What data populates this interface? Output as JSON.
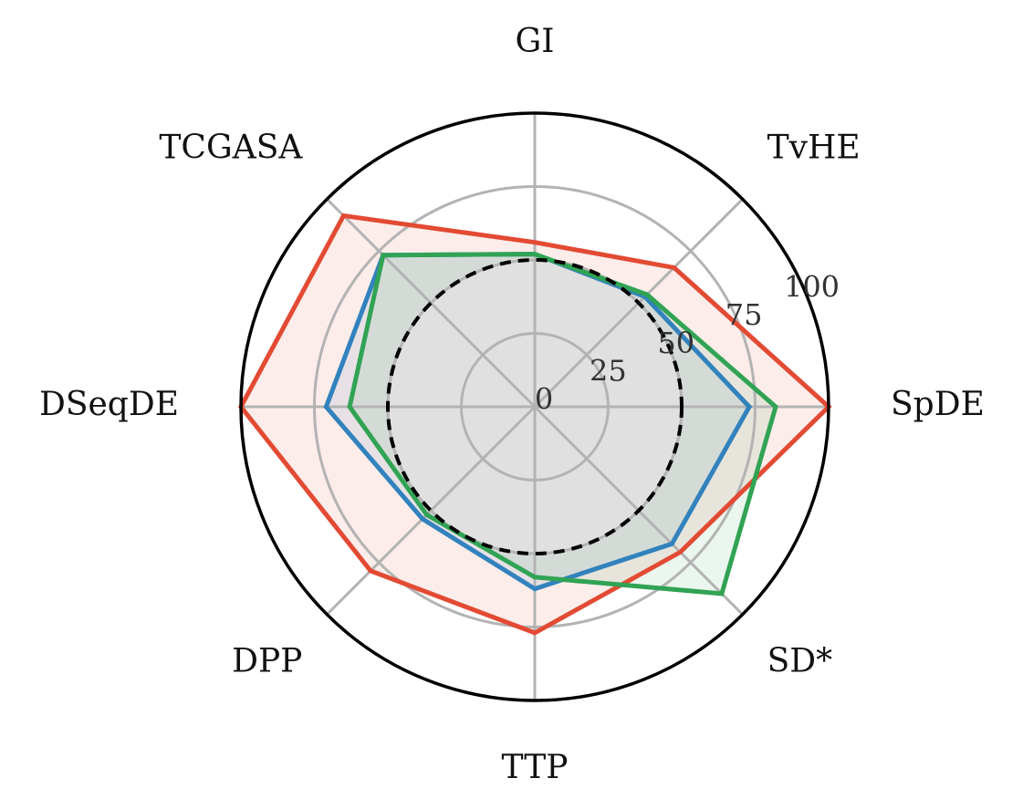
{
  "chart_data": {
    "type": "radar",
    "title": "",
    "axes": [
      "GI",
      "TvHE",
      "SpDE",
      "SD*",
      "TTP",
      "DPP",
      "DSeqDE",
      "TCGASA"
    ],
    "r_range": [
      0,
      100
    ],
    "r_ticks": [
      0,
      25,
      50,
      75,
      100
    ],
    "grid": true,
    "reference_circle": {
      "value": 50,
      "style": "dashed",
      "color": "#000000"
    },
    "series": [
      {
        "color": "#e34a33",
        "values": [
          56,
          67,
          100,
          70,
          77,
          79,
          100,
          92
        ]
      },
      {
        "color": "#3182bd",
        "values": [
          52,
          53,
          73,
          66,
          62,
          54,
          71,
          73
        ]
      },
      {
        "color": "#31a354",
        "values": [
          52,
          54,
          82,
          90,
          58,
          52,
          63,
          73
        ]
      }
    ],
    "baseline_fill": "#e0e0e0"
  }
}
